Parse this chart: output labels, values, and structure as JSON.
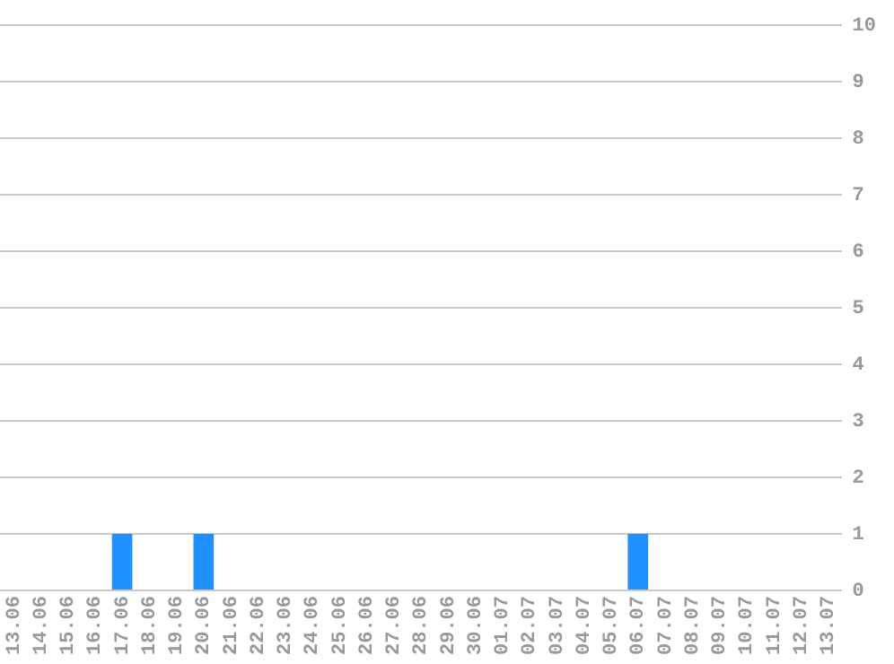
{
  "chart_data": {
    "type": "bar",
    "categories": [
      "13.06",
      "14.06",
      "15.06",
      "16.06",
      "17.06",
      "18.06",
      "19.06",
      "20.06",
      "21.06",
      "22.06",
      "23.06",
      "24.06",
      "25.06",
      "26.06",
      "27.06",
      "28.06",
      "29.06",
      "30.06",
      "01.07",
      "02.07",
      "03.07",
      "04.07",
      "05.07",
      "06.07",
      "07.07",
      "08.07",
      "09.07",
      "10.07",
      "11.07",
      "12.07",
      "13.07"
    ],
    "values": [
      0,
      0,
      0,
      0,
      1,
      0,
      0,
      1,
      0,
      0,
      0,
      0,
      0,
      0,
      0,
      0,
      0,
      0,
      0,
      0,
      0,
      0,
      0,
      1,
      0,
      0,
      0,
      0,
      0,
      0,
      0
    ],
    "color": "#1e90ff",
    "ylim": [
      0,
      10
    ],
    "yticks": [
      0,
      1,
      2,
      3,
      4,
      5,
      6,
      7,
      8,
      9,
      10
    ],
    "grid": "y",
    "legend": false
  }
}
